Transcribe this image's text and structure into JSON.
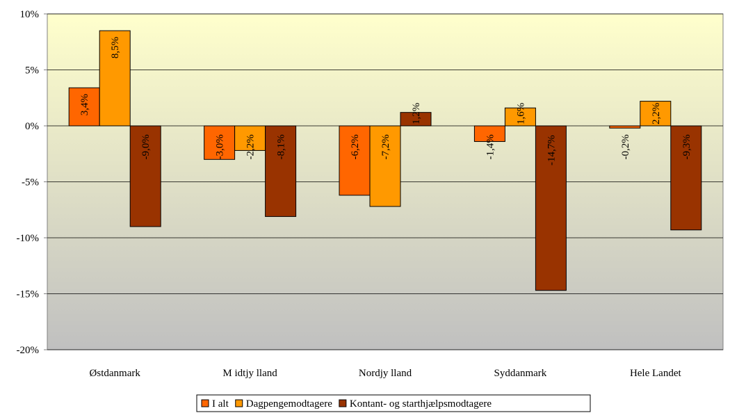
{
  "chart_data": {
    "type": "bar",
    "categories": [
      "Østdanmark",
      "M idtjy lland",
      "Nordjy lland",
      "Syddanmark",
      "Hele Landet"
    ],
    "series": [
      {
        "name": "I alt",
        "color": "#ff6600",
        "values": [
          3.4,
          -3.0,
          -6.2,
          -1.4,
          -0.2
        ],
        "labels": [
          "3,4%",
          "-3,0%",
          "-6,2%",
          "-1,4%",
          "-0,2%"
        ]
      },
      {
        "name": "Dagpengemodtagere",
        "color": "#ff9900",
        "values": [
          8.5,
          -2.2,
          -7.2,
          1.6,
          2.2
        ],
        "labels": [
          "8,5%",
          "-2,2%",
          "-7,2%",
          "1,6%",
          "2,2%"
        ]
      },
      {
        "name": "Kontant- og starthjælpsmodtagere",
        "color": "#993300",
        "values": [
          -9.0,
          -8.1,
          1.2,
          -14.7,
          -9.3
        ],
        "labels": [
          "-9,0%",
          "-8,1%",
          "1,2%",
          "-14,7%",
          "-9,3%"
        ]
      }
    ],
    "ylim": [
      -20,
      10
    ],
    "yticks": [
      10,
      5,
      0,
      -5,
      -10,
      -15,
      -20
    ],
    "ytick_labels": [
      "10%",
      "5%",
      "0%",
      "-5%",
      "-10%",
      "-15%",
      "-20%"
    ],
    "grid": true,
    "legend": "bottom",
    "background_gradient": [
      "#ffffcc",
      "#c0c0c0"
    ]
  }
}
